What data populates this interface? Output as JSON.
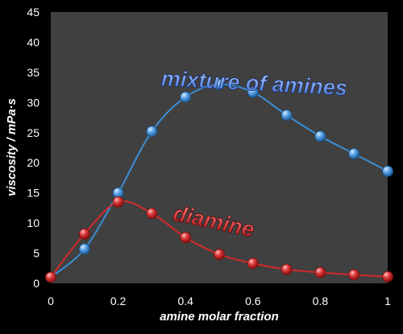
{
  "chart_data": {
    "type": "line",
    "title": "",
    "xlabel": "amine molar fraction",
    "ylabel": "viscosity / mPa·s",
    "xlim": [
      0,
      1
    ],
    "ylim": [
      0,
      45
    ],
    "x_ticks": [
      "0",
      "0.2",
      "0.4",
      "0.6",
      "0.8",
      "1"
    ],
    "y_ticks": [
      "0",
      "5",
      "10",
      "15",
      "20",
      "25",
      "30",
      "35",
      "40",
      "45"
    ],
    "grid": false,
    "legend": "none (series labelled directly on plot)",
    "background_color": "#404040",
    "series": [
      {
        "name": "mixture of amines",
        "color": "#3a8fd6",
        "x": [
          0,
          0.1,
          0.2,
          0.3,
          0.4,
          0.5,
          0.6,
          0.7,
          0.8,
          0.9,
          1.0
        ],
        "y": [
          1.0,
          5.7,
          15.0,
          25.2,
          30.9,
          33.0,
          31.7,
          27.9,
          24.4,
          21.5,
          18.6
        ]
      },
      {
        "name": "diamine",
        "color": "#d22a2a",
        "x": [
          0,
          0.1,
          0.2,
          0.3,
          0.4,
          0.5,
          0.6,
          0.7,
          0.8,
          0.9,
          1.0
        ],
        "y": [
          1.0,
          8.2,
          13.5,
          11.6,
          7.6,
          4.8,
          3.3,
          2.3,
          1.8,
          1.4,
          1.1
        ]
      }
    ]
  }
}
